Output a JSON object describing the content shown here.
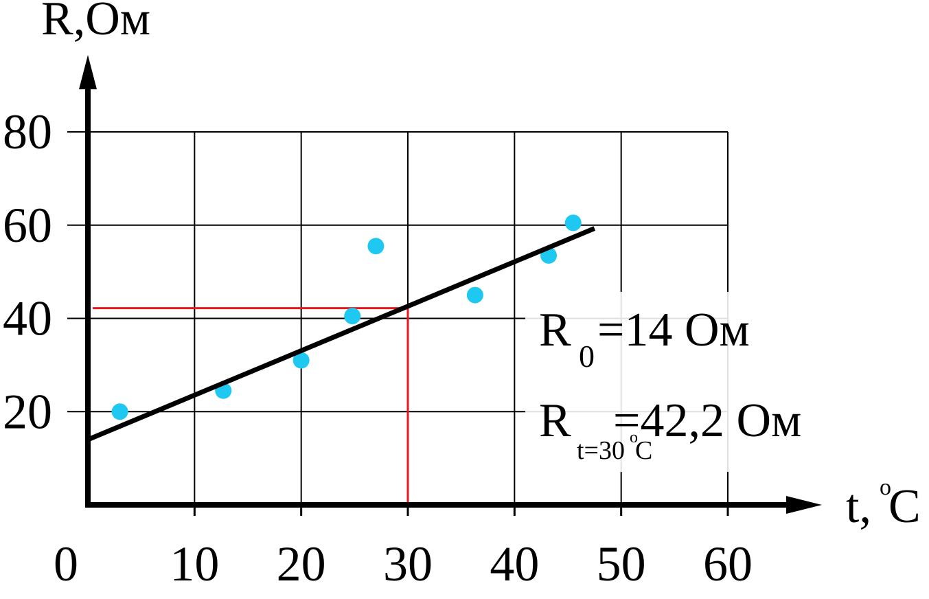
{
  "chart_data": {
    "type": "scatter",
    "ylabel": "R,Ом",
    "xlabel_text": "t,",
    "xlabel_degree": "o",
    "xlabel_unit": "C",
    "xlim": [
      0,
      60
    ],
    "ylim": [
      0,
      80
    ],
    "x_ticks": [
      "0",
      "10",
      "20",
      "30",
      "40",
      "50",
      "60"
    ],
    "y_ticks": [
      "20",
      "40",
      "60",
      "80"
    ],
    "grid": true,
    "points": [
      {
        "x": 3,
        "y": 20
      },
      {
        "x": 12.7,
        "y": 24.5
      },
      {
        "x": 20,
        "y": 31
      },
      {
        "x": 24.8,
        "y": 40.5
      },
      {
        "x": 27,
        "y": 55.5
      },
      {
        "x": 36.3,
        "y": 45
      },
      {
        "x": 43.2,
        "y": 53.5
      },
      {
        "x": 45.5,
        "y": 60.5
      }
    ],
    "point_color": "#1ec8f0",
    "fit_line": {
      "x": [
        0,
        47.5
      ],
      "y": [
        14,
        59.3
      ],
      "color": "#000000"
    },
    "marker": {
      "x": 30,
      "y": 42.2,
      "color": "#e8161e"
    },
    "annotations": {
      "r0_main": "R",
      "r0_sub": "0",
      "r0_value": "=14 Ом",
      "rt_main": "R",
      "rt_sub": "t=30",
      "rt_sub_deg": "o",
      "rt_sub_unit": "C",
      "rt_value": "=42,2 Ом"
    }
  }
}
